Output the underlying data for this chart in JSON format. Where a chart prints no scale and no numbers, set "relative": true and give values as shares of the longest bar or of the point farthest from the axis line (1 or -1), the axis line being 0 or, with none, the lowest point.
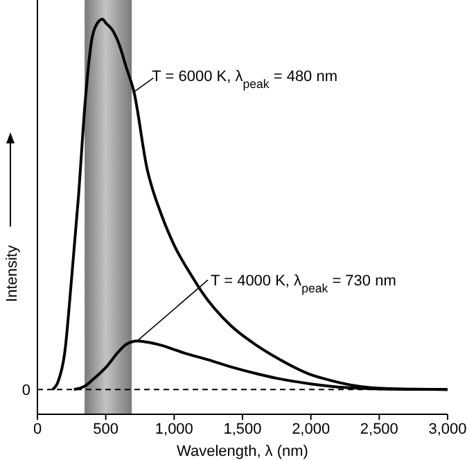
{
  "chart_data": {
    "type": "line",
    "relative": true,
    "xlabel": "Wavelength, λ (nm)",
    "ylabel": "Intensity",
    "xlim": [
      0,
      3000
    ],
    "xticks": [
      0,
      500,
      {
        "value": 1000,
        "label": "1,000"
      },
      {
        "value": 1500,
        "label": "1,500"
      },
      {
        "value": 2000,
        "label": "2,000"
      },
      {
        "value": 2500,
        "label": "2,500"
      },
      {
        "value": 3000,
        "label": "3,000"
      }
    ],
    "series": [
      {
        "color": "#000000",
        "x": [
          111,
          150,
          200,
          250,
          300,
          350,
          400,
          450,
          476,
          500,
          550,
          600,
          650,
          706,
          800,
          909,
          1000,
          1145,
          1200,
          1416,
          1600,
          1753,
          2000,
          2088,
          2432,
          2700,
          3000
        ],
        "values": [
          0,
          0.02,
          0.1,
          0.3,
          0.52,
          0.78,
          0.95,
          0.995,
          1,
          0.99,
          0.97,
          0.93,
          0.87,
          0.804,
          0.6,
          0.47,
          0.39,
          0.297,
          0.265,
          0.172,
          0.12,
          0.085,
          0.04,
          0.03,
          0.005,
          0.001,
          0
        ]
      },
      {
        "color": "#000000",
        "x": [
          267,
          350,
          400,
          504,
          600,
          650,
          730,
          800,
          900,
          1078,
          1250,
          1416,
          1600,
          1753,
          2000,
          2260,
          2600,
          3000
        ],
        "values": [
          0,
          0.01,
          0.025,
          0.061,
          0.105,
          0.122,
          0.131,
          0.128,
          0.12,
          0.098,
          0.08,
          0.061,
          0.043,
          0.03,
          0.015,
          0.005,
          0.001,
          0
        ]
      }
    ],
    "bands": [
      {
        "axis": "x",
        "from": 345,
        "to": 690,
        "color": "#7a7a7a"
      }
    ],
    "ref_lines": [
      {
        "axis": "y",
        "value": 0,
        "label": "0",
        "line_style": "dashed",
        "color": "#000000"
      }
    ],
    "annotations": [
      {
        "text": "T = 6000 K, λ$_{peak}$ = 480 nm",
        "x": 706,
        "y": 0.804
      },
      {
        "text": "T = 4000 K, λ$_{peak}$ = 730 nm",
        "x": 730,
        "y": 0.131
      }
    ]
  }
}
